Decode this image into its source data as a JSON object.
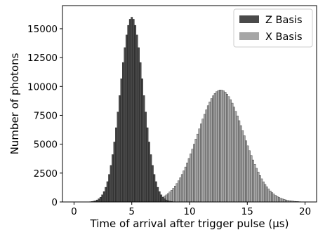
{
  "chart_data": {
    "type": "histogram",
    "xlabel": "Time of arrival after trigger pulse (μs)",
    "ylabel": "Number of photons",
    "xlim": [
      -1,
      21
    ],
    "ylim": [
      0,
      17000
    ],
    "xticks": [
      0,
      5,
      10,
      15,
      20
    ],
    "yticks": [
      0,
      2500,
      5000,
      7500,
      10000,
      12500,
      15000
    ],
    "ytick_labels": [
      "0",
      "2500",
      "5000",
      "7500",
      "10000",
      "12500",
      "15000"
    ],
    "legend": {
      "placement": "top-right"
    },
    "bin_width": 0.15,
    "series": [
      {
        "name": "Z Basis",
        "color": "#4a4a4a",
        "shape": "gaussian",
        "center": 5.0,
        "sigma": 1.0,
        "peak": 16000,
        "range": [
          0.2,
          9.5
        ]
      },
      {
        "name": "X Basis",
        "color": "#a6a6a6",
        "shape": "gaussian",
        "center": 12.7,
        "sigma": 2.0,
        "peak": 9700,
        "range": [
          5.0,
          19.8
        ]
      }
    ]
  }
}
